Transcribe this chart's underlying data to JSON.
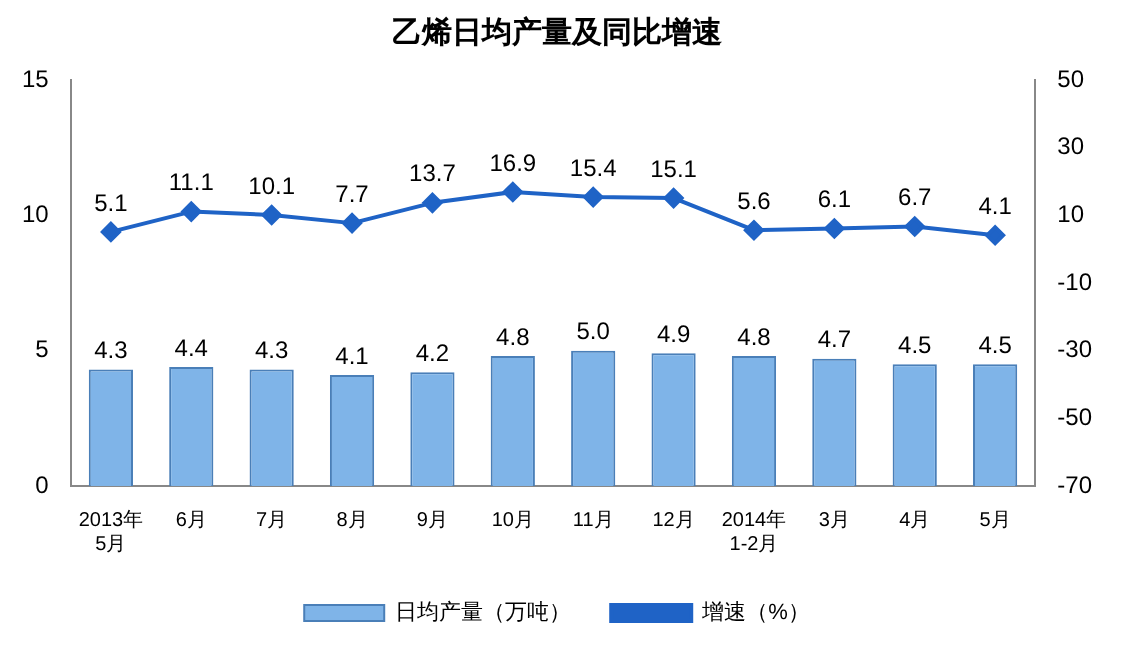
{
  "chart_data": {
    "type": "bar",
    "title": "乙烯日均产量及同比增速",
    "categories": [
      "2013年\n5月",
      "6月",
      "7月",
      "8月",
      "9月",
      "10月",
      "11月",
      "12月",
      "2014年\n1-2月",
      "3月",
      "4月",
      "5月"
    ],
    "series": [
      {
        "name": "日均产量（万吨）",
        "color": "#7fb4e8",
        "values": [
          4.3,
          4.4,
          4.3,
          4.1,
          4.2,
          4.8,
          5.0,
          4.9,
          4.8,
          4.7,
          4.5,
          4.5
        ],
        "value_labels": [
          "4.3",
          "4.4",
          "4.3",
          "4.1",
          "4.2",
          "4.8",
          "5.0",
          "4.9",
          "4.8",
          "4.7",
          "4.5",
          "4.5"
        ]
      },
      {
        "name": "增速（%）",
        "type": "line",
        "axis": "y2",
        "color": "#1f63c6",
        "values": [
          5.1,
          11.1,
          10.1,
          7.7,
          13.7,
          16.9,
          15.4,
          15.1,
          5.6,
          6.1,
          6.7,
          4.1
        ]
      }
    ],
    "ylim": [
      0,
      15
    ],
    "yticks": [
      0,
      5,
      10,
      15
    ],
    "y2lim": [
      -70,
      50
    ],
    "y2ticks": [
      -70,
      -50,
      -30,
      -10,
      10,
      30,
      50
    ],
    "data_labels": true,
    "legend": "bottom",
    "marker": "diamond",
    "grid": false
  }
}
